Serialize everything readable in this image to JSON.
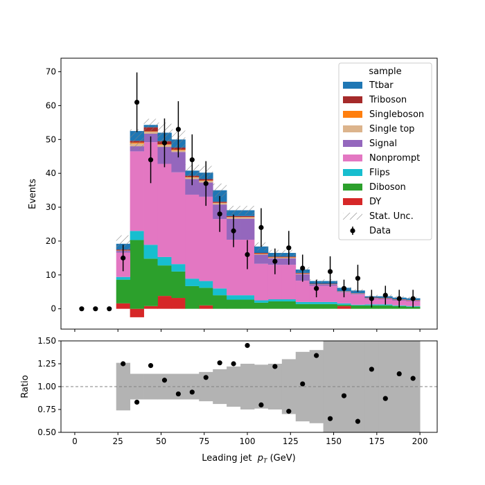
{
  "chart_data": {
    "type": "bar",
    "subtype": "stacked-histogram-with-data-and-ratio-panel",
    "x_edges": [
      24,
      32,
      40,
      48,
      56,
      64,
      72,
      80,
      88,
      96,
      104,
      112,
      120,
      128,
      136,
      144,
      152,
      160,
      168,
      176,
      184,
      192,
      200
    ],
    "xlabel": "Leading jet  p_T (GeV)",
    "xlabel_parts": [
      "Leading jet  ",
      "p",
      "T",
      " (GeV)"
    ],
    "xlim": [
      -8,
      210
    ],
    "xticks": [
      0,
      25,
      50,
      75,
      100,
      125,
      150,
      175,
      200
    ],
    "xtick_labels": [
      "0",
      "25",
      "50",
      "75",
      "100",
      "125",
      "150",
      "175",
      "200"
    ],
    "top_panel": {
      "ylabel": "Events",
      "ylim": [
        -6,
        74
      ],
      "yticks": [
        0,
        10,
        20,
        30,
        40,
        50,
        60,
        70
      ],
      "ytick_labels": [
        "0",
        "10",
        "20",
        "30",
        "40",
        "50",
        "60",
        "70"
      ],
      "legend": {
        "title": "sample",
        "placement": "top-right",
        "entries": [
          "Ttbar",
          "Triboson",
          "Singleboson",
          "Single top",
          "Signal",
          "Nonprompt",
          "Flips",
          "Diboson",
          "DY",
          "Stat. Unc.",
          "Data"
        ]
      },
      "stack_order_bottom_to_top": [
        "DY",
        "Diboson",
        "Flips",
        "Nonprompt",
        "Signal",
        "Single top",
        "Singleboson",
        "Triboson",
        "Ttbar"
      ],
      "series": [
        {
          "name": "DY",
          "color": "#d62728",
          "values": [
            1.6,
            -2.5,
            0.8,
            3.8,
            3.2,
            0.0,
            1.0,
            0.0,
            0.0,
            0.0,
            0.0,
            0.0,
            0.0,
            0.0,
            0.0,
            0.0,
            0.8,
            0.0,
            0.0,
            0.0,
            0.0,
            0.0
          ]
        },
        {
          "name": "Diboson",
          "color": "#2ca02c",
          "values": [
            7.0,
            20.3,
            14.0,
            9.0,
            7.8,
            6.7,
            5.2,
            4.0,
            2.7,
            2.7,
            1.8,
            2.2,
            2.2,
            1.4,
            1.4,
            1.4,
            0.4,
            1.0,
            1.0,
            1.0,
            0.8,
            0.6
          ]
        },
        {
          "name": "Flips",
          "color": "#17becf",
          "values": [
            0.8,
            2.7,
            4.1,
            2.5,
            2.2,
            2.2,
            2.0,
            2.0,
            1.3,
            1.3,
            0.7,
            0.6,
            0.6,
            0.6,
            0.6,
            0.6,
            0.4,
            0.2,
            0.3,
            0.3,
            0.2,
            0.2
          ]
        },
        {
          "name": "Nonprompt",
          "color": "#e377c2",
          "values": [
            7.2,
            23.5,
            30.3,
            27.5,
            27.1,
            24.8,
            24.9,
            20.5,
            16.4,
            16.4,
            10.8,
            10.2,
            10.2,
            6.3,
            4.8,
            4.8,
            3.2,
            3.0,
            1.6,
            1.5,
            1.4,
            1.4
          ]
        },
        {
          "name": "Signal",
          "color": "#9467bd",
          "values": [
            0.5,
            1.5,
            2.5,
            5.0,
            6.0,
            4.6,
            4.2,
            4.3,
            6.2,
            6.2,
            2.7,
            1.9,
            1.9,
            1.9,
            0.4,
            0.4,
            0.2,
            0.2,
            0.2,
            0.2,
            0.2,
            0.2
          ]
        },
        {
          "name": "Single top",
          "color": "#dcb48c",
          "values": [
            0.1,
            0.8,
            0.6,
            0.6,
            0.5,
            0.5,
            0.5,
            0.4,
            0.4,
            0.4,
            0.2,
            0.2,
            0.2,
            0.2,
            0.1,
            0.1,
            0.1,
            0.1,
            0.1,
            0.1,
            0.1,
            0.1
          ]
        },
        {
          "name": "Singleboson",
          "color": "#ff7f0e",
          "values": [
            0.0,
            0.3,
            0.1,
            0.2,
            0.2,
            0.1,
            0.1,
            0.1,
            0.1,
            0.1,
            0.1,
            0.1,
            0.1,
            0.0,
            0.0,
            0.0,
            0.0,
            0.0,
            0.0,
            0.0,
            0.0,
            0.0
          ]
        },
        {
          "name": "Triboson",
          "color": "#a52a2a",
          "values": [
            0.3,
            0.5,
            1.2,
            0.9,
            0.6,
            0.4,
            0.4,
            0.3,
            0.3,
            0.3,
            0.2,
            0.2,
            0.2,
            0.2,
            0.1,
            0.1,
            0.1,
            0.1,
            0.1,
            0.1,
            0.1,
            0.1
          ]
        },
        {
          "name": "Ttbar",
          "color": "#1f77b4",
          "values": [
            1.7,
            2.9,
            0.7,
            2.5,
            2.4,
            1.5,
            1.9,
            3.4,
            1.7,
            1.7,
            1.9,
            1.1,
            1.1,
            1.0,
            0.8,
            0.8,
            1.0,
            0.8,
            0.4,
            0.5,
            0.5,
            0.5
          ]
        }
      ],
      "stat_unc_halfwidth": [
        2.5,
        3.0,
        1.8,
        3.0,
        3.0,
        1.8,
        2.0,
        2.0,
        1.3,
        1.3,
        1.2,
        0.9,
        0.9,
        0.7,
        0.5,
        0.5,
        0.5,
        0.4,
        0.4,
        0.5,
        0.4,
        0.4
      ],
      "data": {
        "name": "Data",
        "x": [
          4,
          12,
          20,
          28,
          36,
          44,
          52,
          60,
          68,
          76,
          84,
          92,
          100,
          108,
          116,
          124,
          132,
          140,
          148,
          156,
          164,
          172,
          180,
          188,
          196
        ],
        "y": [
          0,
          0,
          0,
          15,
          61,
          44,
          49,
          53,
          44,
          37,
          28,
          23,
          16,
          24,
          14,
          18,
          12,
          6,
          11,
          6,
          9,
          3,
          4,
          3,
          3
        ],
        "yerr": [
          0,
          0,
          0,
          3.9,
          8.8,
          6.9,
          7.2,
          8.3,
          7.5,
          6.6,
          5.3,
          4.8,
          4.3,
          5.7,
          3.8,
          5.0,
          4.0,
          2.6,
          4.5,
          2.6,
          4.0,
          2.6,
          2.8,
          2.6,
          2.6
        ]
      }
    },
    "ratio_panel": {
      "ylabel": "Ratio",
      "ylim": [
        0.5,
        1.5
      ],
      "yticks": [
        0.5,
        0.75,
        1.0,
        1.25,
        1.5
      ],
      "ytick_labels": [
        "0.50",
        "0.75",
        "1.00",
        "1.25",
        "1.50"
      ],
      "reference_line": 1.0,
      "band_halfwidth": [
        0.26,
        0.14,
        0.14,
        0.14,
        0.14,
        0.14,
        0.16,
        0.19,
        0.22,
        0.25,
        0.24,
        0.25,
        0.3,
        0.38,
        0.4,
        0.5,
        0.5,
        0.5,
        0.5,
        0.5,
        0.5,
        0.5
      ],
      "points_x": [
        28,
        36,
        44,
        52,
        60,
        68,
        76,
        84,
        92,
        100,
        108,
        116,
        124,
        132,
        140,
        148,
        156,
        164,
        172,
        180,
        188,
        196
      ],
      "points_y": [
        1.25,
        0.83,
        1.23,
        1.07,
        0.92,
        0.94,
        1.1,
        1.26,
        1.25,
        1.45,
        0.8,
        1.22,
        0.73,
        1.03,
        1.34,
        0.65,
        0.9,
        0.62,
        1.19,
        0.87,
        1.14,
        1.09
      ]
    }
  },
  "colors": {
    "stat_hatch": "#808080",
    "ratio_band": "#b3b3b3",
    "marker": "#000000",
    "reference_line": "#808080"
  }
}
